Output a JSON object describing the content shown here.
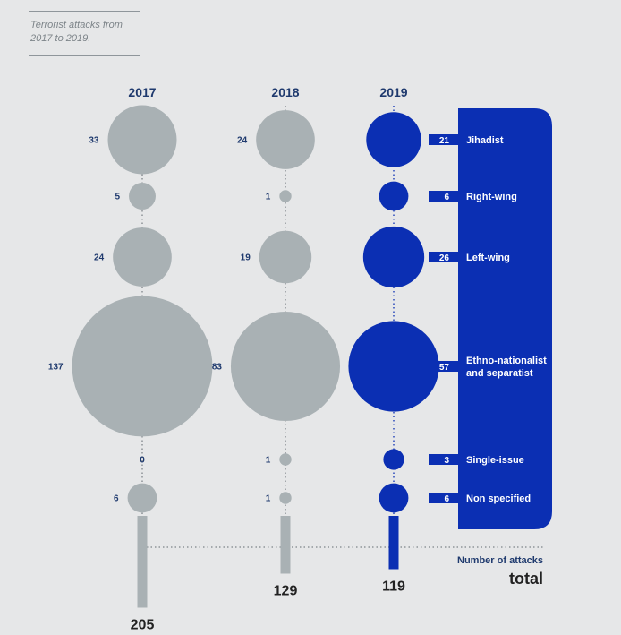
{
  "header": {
    "subtitle_line1": "Terrorist attacks from",
    "subtitle_line2": "2017 to 2019."
  },
  "legend": {
    "number_label": "Number of attacks",
    "total_label": "total"
  },
  "colors": {
    "background": "#e6e7e8",
    "grey_bubble": "#a9b1b4",
    "blue_bubble": "#0b2fb3",
    "panel_blue": "#0b2fb3",
    "dark_navy_text": "#1f3a6e"
  },
  "chart_data": {
    "type": "bubble",
    "title": "",
    "years": [
      "2017",
      "2018",
      "2019"
    ],
    "categories": [
      "Jihadist",
      "Right-wing",
      "Left-wing",
      "Ethno-nationalist and separatist",
      "Single-issue",
      "Non specified"
    ],
    "category_lines": [
      [
        "Jihadist"
      ],
      [
        "Right-wing"
      ],
      [
        "Left-wing"
      ],
      [
        "Ethno-nationalist",
        "and separatist"
      ],
      [
        "Single-issue"
      ],
      [
        "Non specified"
      ]
    ],
    "series": [
      {
        "year": "2017",
        "values": [
          33,
          5,
          24,
          137,
          0,
          6
        ],
        "total": 205
      },
      {
        "year": "2018",
        "values": [
          24,
          1,
          19,
          83,
          1,
          1
        ],
        "total": 129
      },
      {
        "year": "2019",
        "values": [
          21,
          6,
          26,
          57,
          3,
          6
        ],
        "total": 119
      }
    ],
    "value_axis": "Number of attacks",
    "highlight_year": "2019",
    "legend_position": "right"
  }
}
